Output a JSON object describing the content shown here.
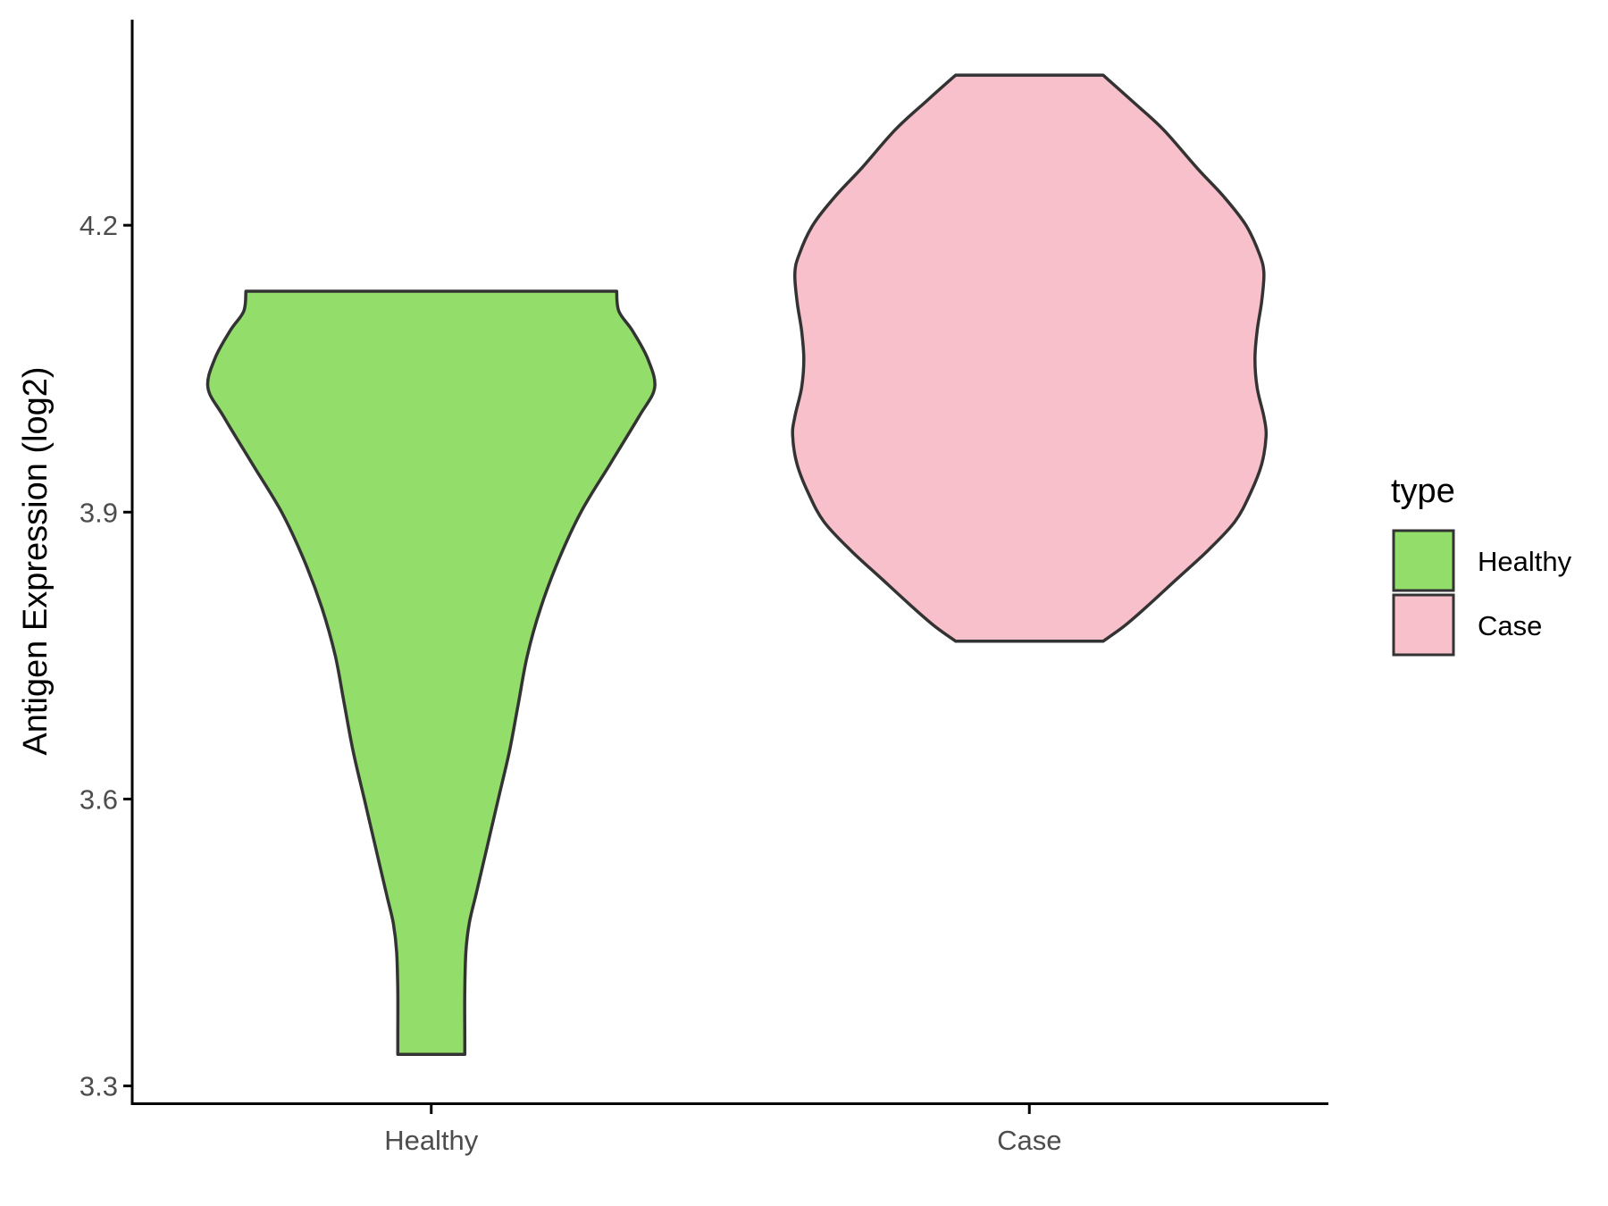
{
  "chart_data": {
    "type": "violin",
    "title": "",
    "xlabel": "",
    "ylabel": "Antigen Expression (log2)",
    "ylim": [
      3.28,
      4.415
    ],
    "y_ticks": [
      "3.3",
      "3.6",
      "3.9",
      "4.2"
    ],
    "categories": [
      "Healthy",
      "Case"
    ],
    "series": [
      {
        "name": "Healthy",
        "color": "#93dd6b",
        "min": 3.333,
        "max": 4.131,
        "density_profile": [
          [
            3.333,
            0.15
          ],
          [
            3.35,
            0.15
          ],
          [
            3.4,
            0.15
          ],
          [
            3.44,
            0.155
          ],
          [
            3.47,
            0.17
          ],
          [
            3.5,
            0.2
          ],
          [
            3.55,
            0.25
          ],
          [
            3.6,
            0.3
          ],
          [
            3.65,
            0.35
          ],
          [
            3.7,
            0.39
          ],
          [
            3.75,
            0.43
          ],
          [
            3.8,
            0.49
          ],
          [
            3.85,
            0.57
          ],
          [
            3.9,
            0.67
          ],
          [
            3.95,
            0.8
          ],
          [
            4.0,
            0.93
          ],
          [
            4.03,
            1.0
          ],
          [
            4.06,
            0.97
          ],
          [
            4.09,
            0.9
          ],
          [
            4.11,
            0.84
          ],
          [
            4.131,
            0.83
          ]
        ]
      },
      {
        "name": "Case",
        "color": "#f8c0cb",
        "min": 3.765,
        "max": 4.357,
        "density_profile": [
          [
            3.765,
            0.33
          ],
          [
            3.78,
            0.42
          ],
          [
            3.8,
            0.52
          ],
          [
            3.83,
            0.66
          ],
          [
            3.86,
            0.8
          ],
          [
            3.89,
            0.92
          ],
          [
            3.92,
            0.99
          ],
          [
            3.95,
            1.04
          ],
          [
            3.98,
            1.06
          ],
          [
            4.0,
            1.05
          ],
          [
            4.03,
            1.02
          ],
          [
            4.06,
            1.01
          ],
          [
            4.09,
            1.02
          ],
          [
            4.12,
            1.04
          ],
          [
            4.15,
            1.05
          ],
          [
            4.17,
            1.03
          ],
          [
            4.2,
            0.97
          ],
          [
            4.23,
            0.87
          ],
          [
            4.26,
            0.75
          ],
          [
            4.3,
            0.6
          ],
          [
            4.33,
            0.46
          ],
          [
            4.357,
            0.33
          ]
        ]
      }
    ],
    "legend": {
      "title": "type",
      "position": "right",
      "items": [
        "Healthy",
        "Case"
      ]
    },
    "grid": false,
    "outline_color": "#333333"
  }
}
